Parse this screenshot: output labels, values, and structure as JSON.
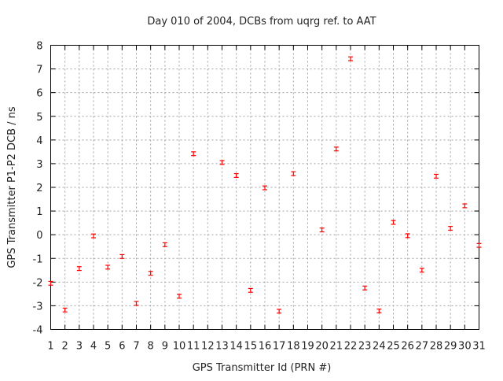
{
  "chart_data": {
    "type": "scatter",
    "title": "Day 010 of 2004, DCBs from uqrg ref. to AAT",
    "xlabel": "GPS Transmitter Id (PRN #)",
    "ylabel": "GPS Transmitter P1-P2 DCB / ns",
    "xlim": [
      1,
      31
    ],
    "ylim": [
      -4,
      8
    ],
    "yticks": [
      -4,
      -3,
      -2,
      -1,
      0,
      1,
      2,
      3,
      4,
      5,
      6,
      7,
      8
    ],
    "xticks": [
      1,
      2,
      3,
      4,
      5,
      6,
      7,
      8,
      9,
      10,
      11,
      12,
      13,
      14,
      15,
      16,
      17,
      18,
      19,
      20,
      21,
      22,
      23,
      24,
      25,
      26,
      27,
      28,
      29,
      30,
      31
    ],
    "grid": true,
    "marker_color": "#ff0000",
    "error_bar": 0.08,
    "points": [
      {
        "x": 1,
        "y": -2.05
      },
      {
        "x": 2,
        "y": -3.18
      },
      {
        "x": 3,
        "y": -1.43
      },
      {
        "x": 4,
        "y": -0.05
      },
      {
        "x": 5,
        "y": -1.37
      },
      {
        "x": 6,
        "y": -0.92
      },
      {
        "x": 7,
        "y": -2.9
      },
      {
        "x": 8,
        "y": -1.63
      },
      {
        "x": 9,
        "y": -0.42
      },
      {
        "x": 10,
        "y": -2.6
      },
      {
        "x": 11,
        "y": 3.42
      },
      {
        "x": 13,
        "y": 3.05
      },
      {
        "x": 14,
        "y": 2.5
      },
      {
        "x": 15,
        "y": -2.35
      },
      {
        "x": 16,
        "y": 1.98
      },
      {
        "x": 17,
        "y": -3.23
      },
      {
        "x": 18,
        "y": 2.58
      },
      {
        "x": 20,
        "y": 0.2
      },
      {
        "x": 21,
        "y": 3.62
      },
      {
        "x": 22,
        "y": 7.43
      },
      {
        "x": 23,
        "y": -2.25
      },
      {
        "x": 24,
        "y": -3.22
      },
      {
        "x": 25,
        "y": 0.52
      },
      {
        "x": 26,
        "y": -0.04
      },
      {
        "x": 27,
        "y": -1.5
      },
      {
        "x": 28,
        "y": 2.47
      },
      {
        "x": 29,
        "y": 0.27
      },
      {
        "x": 30,
        "y": 1.22
      },
      {
        "x": 31,
        "y": -0.45
      }
    ]
  }
}
